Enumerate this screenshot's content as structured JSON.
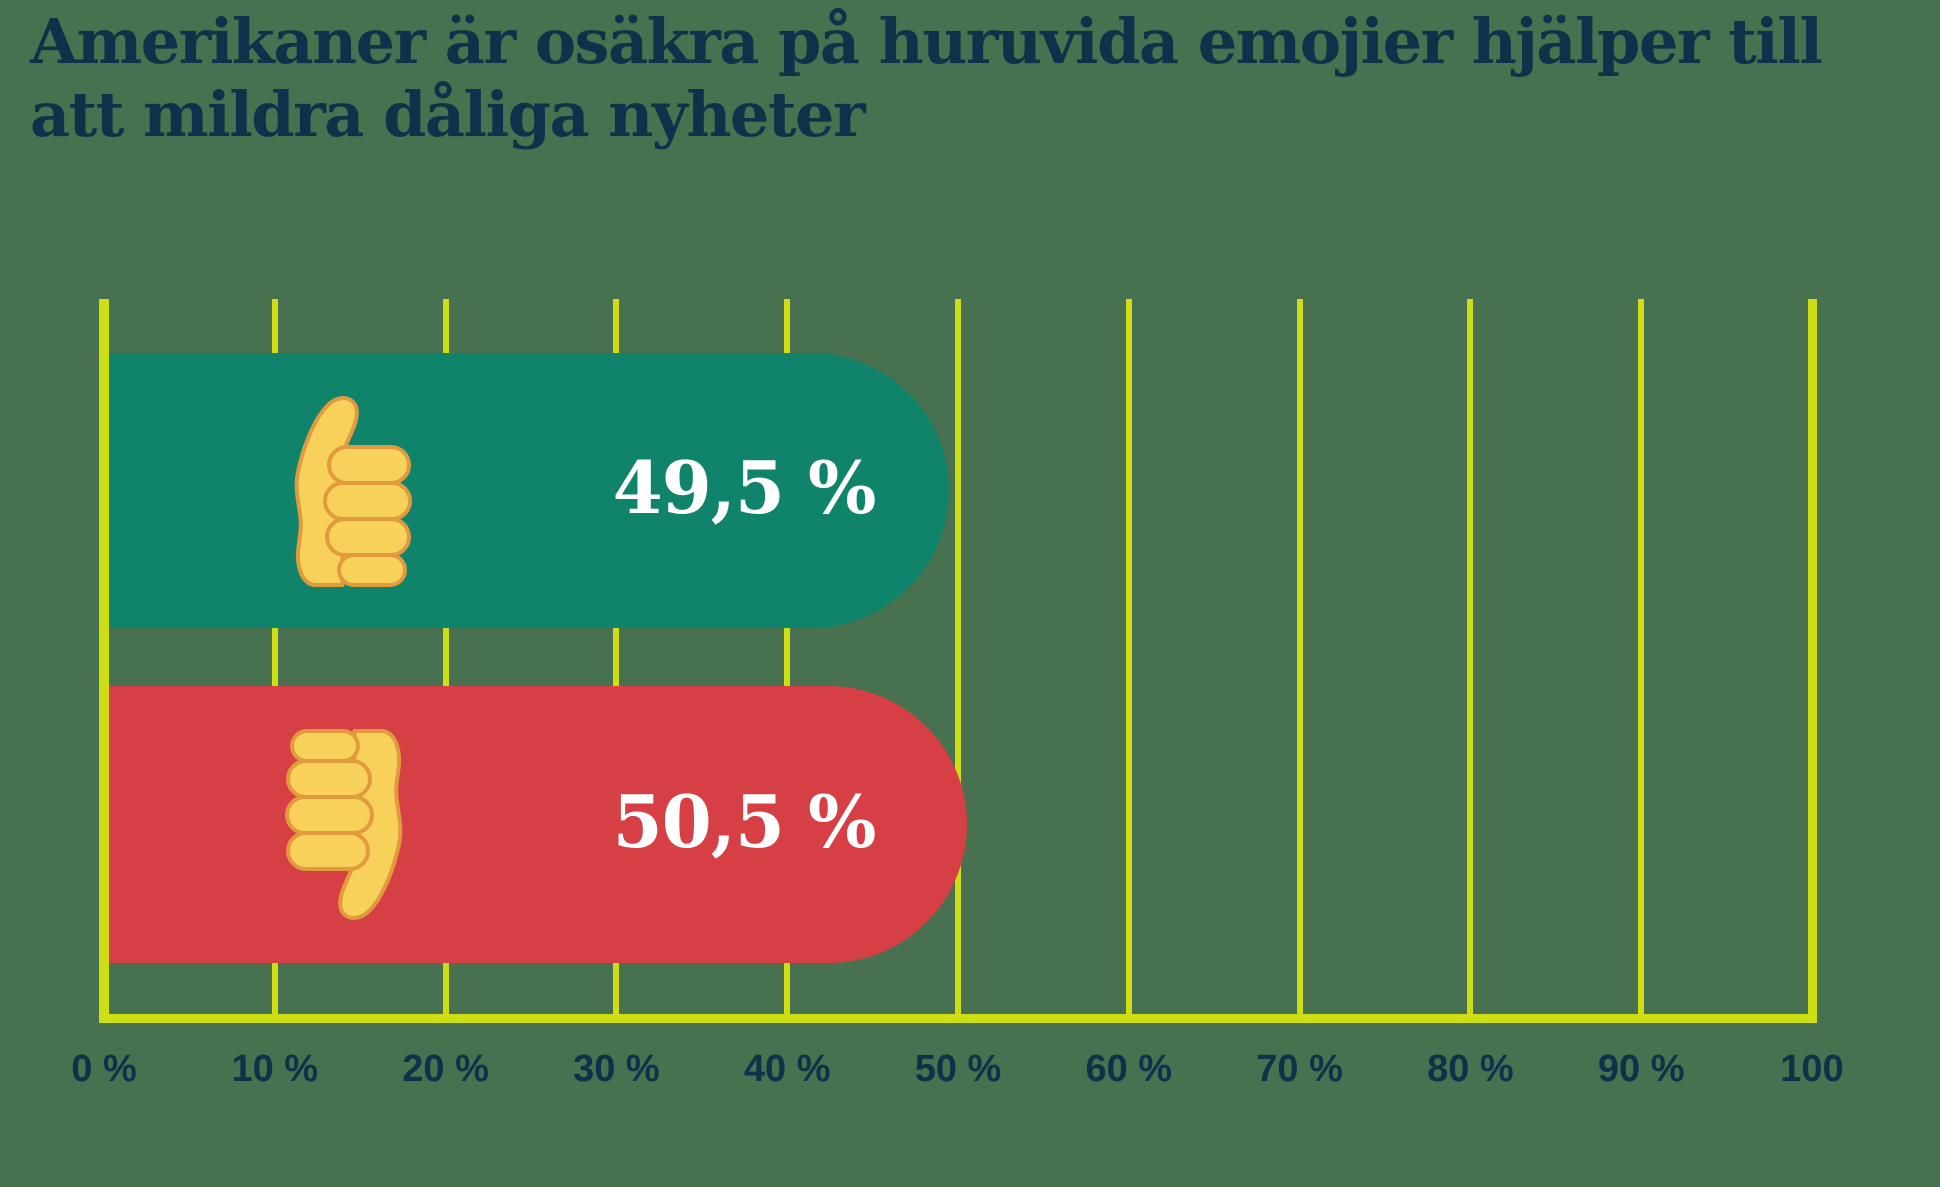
{
  "title": {
    "text": "Amerikaner är osäkra på huruvida emojier hjälper till att mildra dåliga nyheter",
    "lines": [
      "Amerikaner är osäkra på huruvida emojier hjälper till",
      "att mildra dåliga nyheter"
    ]
  },
  "chart_data": {
    "type": "bar",
    "orientation": "horizontal",
    "title": "Amerikaner är osäkra på huruvida emojier hjälper till att mildra dåliga nyheter",
    "categories": [
      "thumbs-up",
      "thumbs-down"
    ],
    "values": [
      49.5,
      50.5
    ],
    "value_labels": [
      "49,5 %",
      "50,5 %"
    ],
    "bar_colors": [
      "#10846B",
      "#D63F44"
    ],
    "bar_icons": [
      "thumbs-up",
      "thumbs-down"
    ],
    "x_axis": {
      "range": [
        0,
        100
      ],
      "ticks": [
        0,
        10,
        20,
        30,
        40,
        50,
        60,
        70,
        80,
        90,
        100
      ],
      "tick_labels": [
        "0 %",
        "10 %",
        "20 %",
        "30 %",
        "40 %",
        "50 %",
        "60 %",
        "70 %",
        "80 %",
        "90 %",
        "100"
      ],
      "gridlines": true,
      "gridline_color": "#CDDE14"
    },
    "legend": null
  },
  "style": {
    "background_color": "#48714F",
    "grid_color": "#CDDE14",
    "title_color": "#11314A",
    "tick_color": "#11314A",
    "value_text_color": "#FFFFFF",
    "bar_positive_color": "#10846B",
    "bar_negative_color": "#D63F44",
    "hand_fill_color": "#F8D15B",
    "hand_outline_color": "#E29A3E"
  }
}
